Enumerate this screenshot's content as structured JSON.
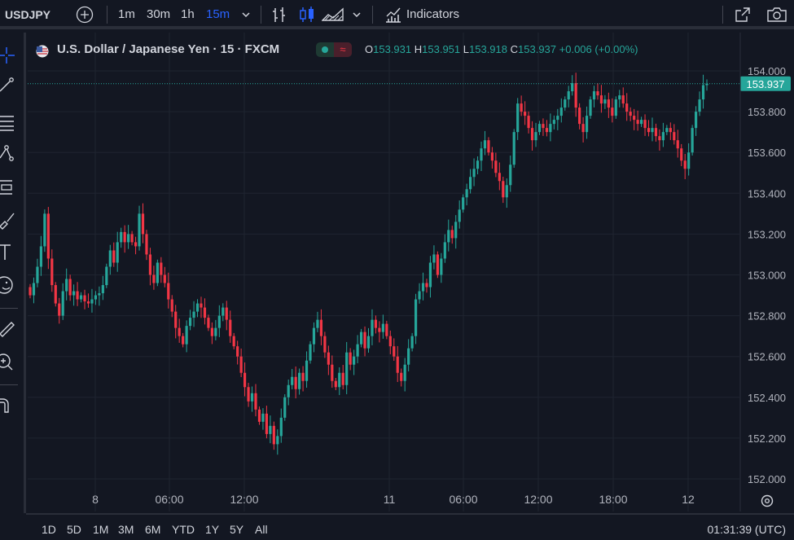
{
  "toolbar": {
    "symbol": "USDJPY",
    "intervals": [
      "1m",
      "30m",
      "1h",
      "15m"
    ],
    "active_interval": "15m",
    "indicators_label": "Indicators"
  },
  "legend": {
    "title": "U.S. Dollar / Japanese Yen · 15 · FXCM",
    "open_key": "O",
    "open": "153.931",
    "high_key": "H",
    "high": "153.951",
    "low_key": "L",
    "low": "153.918",
    "close_key": "C",
    "close": "153.937",
    "change": "+0.006 (+0.00%)",
    "pill_mark": "≈"
  },
  "bottom": {
    "ranges": [
      "1D",
      "5D",
      "1M",
      "3M",
      "6M",
      "YTD",
      "1Y",
      "5Y",
      "All"
    ],
    "clock": "01:31:39 (UTC)"
  },
  "colors": {
    "background": "#131722",
    "grid": "#1f2430",
    "up": "#26a69a",
    "down": "#f23645",
    "accent": "#2962ff",
    "last_price_line": "#26a69a"
  },
  "icons": [
    "add-symbol-icon",
    "bar-style-icon",
    "candle-style-icon",
    "area-style-icon",
    "chevron-down-icon",
    "indicators-icon",
    "fullscreen-icon",
    "camera-icon",
    "crosshair-icon",
    "trendline-icon",
    "fib-icon",
    "pattern-icon",
    "projection-icon",
    "brush-icon",
    "text-icon",
    "emoji-icon",
    "ruler-icon",
    "zoom-icon",
    "magnet-icon",
    "chart-settings-icon"
  ],
  "chart_data": {
    "type": "candlestick",
    "title": "U.S. Dollar / Japanese Yen · 15 · FXCM",
    "interval": "15",
    "ylim": [
      151.95,
      154.05
    ],
    "y_ticks": [
      152.0,
      152.2,
      152.4,
      152.6,
      152.8,
      153.0,
      153.2,
      153.4,
      153.6,
      153.8,
      154.0
    ],
    "y_tick_labels": [
      "152.000",
      "152.200",
      "152.400",
      "152.600",
      "152.800",
      "153.000",
      "153.200",
      "153.400",
      "153.600",
      "153.800",
      "154.000"
    ],
    "x_tick_labels": [
      "8",
      "06:00",
      "12:00",
      "11",
      "06:00",
      "12:00",
      "18:00",
      "12"
    ],
    "last_price": 153.937,
    "last_price_label": "153.937",
    "grid": true,
    "closes": [
      152.9,
      152.96,
      153.04,
      153.14,
      153.3,
      153.08,
      152.95,
      152.86,
      152.8,
      152.92,
      152.98,
      152.9,
      152.92,
      152.88,
      152.9,
      152.87,
      152.86,
      152.88,
      152.9,
      152.91,
      152.95,
      153.04,
      153.12,
      153.06,
      153.16,
      153.21,
      153.16,
      153.2,
      153.16,
      153.14,
      153.3,
      153.2,
      153.1,
      153.0,
      152.96,
      153.06,
      153.0,
      152.96,
      152.88,
      152.82,
      152.74,
      152.7,
      152.66,
      152.75,
      152.79,
      152.82,
      152.86,
      152.84,
      152.79,
      152.74,
      152.7,
      152.74,
      152.8,
      152.84,
      152.78,
      152.7,
      152.65,
      152.6,
      152.52,
      152.45,
      152.38,
      152.42,
      152.34,
      152.28,
      152.32,
      152.22,
      152.26,
      152.17,
      152.21,
      152.3,
      152.4,
      152.46,
      152.5,
      152.44,
      152.52,
      152.48,
      152.58,
      152.66,
      152.74,
      152.78,
      152.7,
      152.62,
      152.56,
      152.48,
      152.45,
      152.52,
      152.46,
      152.62,
      152.56,
      152.6,
      152.66,
      152.72,
      152.64,
      152.7,
      152.78,
      152.74,
      152.72,
      152.76,
      152.7,
      152.65,
      152.6,
      152.52,
      152.48,
      152.56,
      152.64,
      152.7,
      152.88,
      152.92,
      152.96,
      152.94,
      153.06,
      153.1,
      153.0,
      153.08,
      153.16,
      153.22,
      153.18,
      153.26,
      153.32,
      153.38,
      153.42,
      153.48,
      153.52,
      153.56,
      153.62,
      153.66,
      153.6,
      153.56,
      153.5,
      153.46,
      153.38,
      153.44,
      153.54,
      153.7,
      153.84,
      153.8,
      153.78,
      153.72,
      153.66,
      153.7,
      153.74,
      153.72,
      153.7,
      153.74,
      153.76,
      153.78,
      153.82,
      153.86,
      153.9,
      153.94,
      153.82,
      153.74,
      153.7,
      153.78,
      153.86,
      153.9,
      153.88,
      153.84,
      153.86,
      153.82,
      153.78,
      153.86,
      153.88,
      153.84,
      153.8,
      153.78,
      153.76,
      153.74,
      153.76,
      153.72,
      153.7,
      153.72,
      153.68,
      153.66,
      153.7,
      153.72,
      153.7,
      153.66,
      153.62,
      153.56,
      153.52,
      153.6,
      153.72,
      153.8,
      153.86,
      153.93,
      153.937
    ]
  }
}
